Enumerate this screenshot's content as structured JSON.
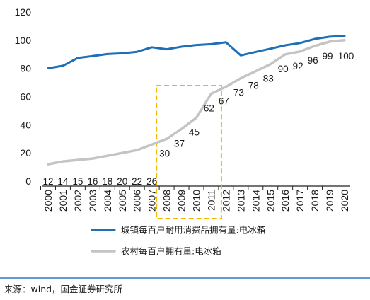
{
  "chart_data": {
    "type": "line",
    "x": [
      "2000",
      "2001",
      "2002",
      "2003",
      "2004",
      "2005",
      "2006",
      "2007",
      "2008",
      "2009",
      "2010",
      "2011",
      "2012",
      "2013",
      "2014",
      "2015",
      "2016",
      "2017",
      "2018",
      "2019",
      "2020"
    ],
    "ylim": [
      0,
      120
    ],
    "yticks": [
      0,
      20,
      40,
      60,
      80,
      100,
      120
    ],
    "series": [
      {
        "name": "城镇每百户耐用消费品拥有量:电冰箱",
        "color": "#1f6fb7",
        "values": [
          80.1,
          81.9,
          87.4,
          88.7,
          90.2,
          90.7,
          91.8,
          95.0,
          93.6,
          95.4,
          96.6,
          97.2,
          98.5,
          89.2,
          91.7,
          94.0,
          96.4,
          98.0,
          100.9,
          102.5,
          103.1
        ]
      },
      {
        "name": "农村每百户拥有量:电冰箱",
        "color": "#c4c4c4",
        "values": [
          12,
          14,
          15,
          16,
          18,
          20,
          22,
          26,
          30,
          37,
          45,
          62,
          67,
          73,
          78,
          83,
          90,
          92,
          96,
          99,
          100
        ],
        "labels": [
          "12",
          "14",
          "15",
          "16",
          "18",
          "20",
          "22",
          "26",
          "30",
          "37",
          "45",
          "62",
          "67",
          "73",
          "78",
          "83",
          "90",
          "92",
          "96",
          "99",
          "100"
        ]
      }
    ],
    "highlight": {
      "from": "2008",
      "to": "2011",
      "color": "#f5b800"
    },
    "grid": false,
    "legend_position": "bottom"
  },
  "source": "来源：wind，国金证券研究所"
}
